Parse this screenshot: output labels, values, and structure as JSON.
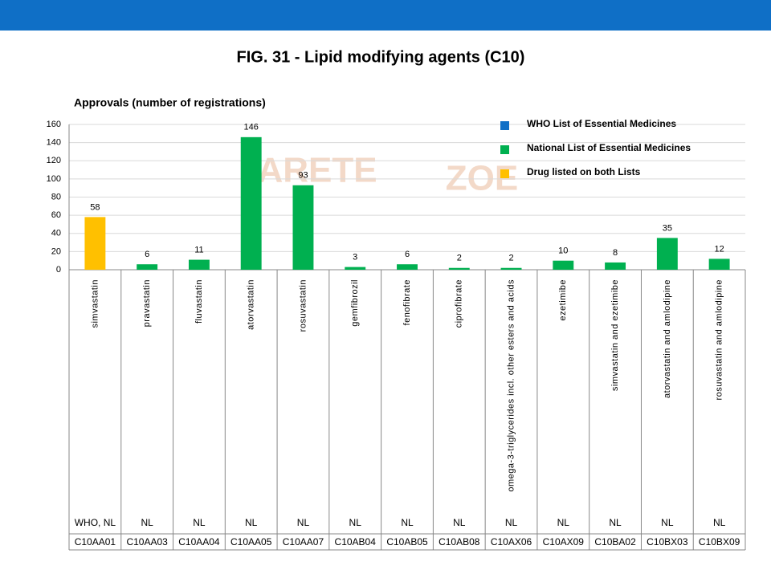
{
  "chart_data": {
    "type": "bar",
    "title": "FIG. 31 - Lipid modifying agents (C10)",
    "subtitle": "Approvals (number of registrations)",
    "watermark": [
      "ARETE",
      "ZOE"
    ],
    "categories": [
      "simvastatin",
      "pravastatin",
      "fluvastatin",
      "atorvastatin",
      "rosuvastatin",
      "gemfibrozil",
      "fenofibrate",
      "ciprofibrate",
      "omega-3-triglycerides incl. other esters and acids",
      "ezetimibe",
      "simvastatin and ezetimibe",
      "atorvastatin and amlodipine",
      "rosuvastatin and amlodipine"
    ],
    "listing": [
      "WHO, NL",
      "NL",
      "NL",
      "NL",
      "NL",
      "NL",
      "NL",
      "NL",
      "NL",
      "NL",
      "NL",
      "NL",
      "NL"
    ],
    "codes": [
      "C10AA01",
      "C10AA03",
      "C10AA04",
      "C10AA05",
      "C10AA07",
      "C10AB04",
      "C10AB05",
      "C10AB08",
      "C10AX06",
      "C10AX09",
      "C10BA02",
      "C10BX03",
      "C10BX09"
    ],
    "values": [
      58,
      6,
      11,
      146,
      93,
      3,
      6,
      2,
      2,
      10,
      8,
      35,
      12
    ],
    "colors": [
      "#ffc000",
      "#00b050",
      "#00b050",
      "#00b050",
      "#00b050",
      "#00b050",
      "#00b050",
      "#00b050",
      "#00b050",
      "#00b050",
      "#00b050",
      "#00b050",
      "#00b050"
    ],
    "legend": [
      {
        "name": "WHO List of Essential Medicines",
        "color": "#0f6fc6"
      },
      {
        "name": "National List of Essential Medicines",
        "color": "#00b050"
      },
      {
        "name": "Drug listed on both Lists",
        "color": "#ffc000"
      }
    ],
    "ylim": [
      0,
      160
    ],
    "yticks": [
      0,
      20,
      40,
      60,
      80,
      100,
      120,
      140,
      160
    ],
    "grid": true
  }
}
